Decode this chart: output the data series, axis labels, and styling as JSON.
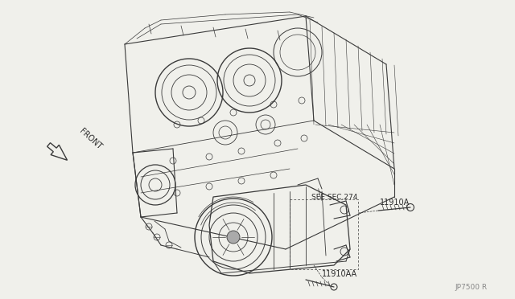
{
  "background_color": "#f0f0eb",
  "line_color": "#3a3a3a",
  "text_color": "#2a2a2a",
  "labels": {
    "front_arrow": "FRONT",
    "see_sec": "SEE SEC.274",
    "part1": "11910A",
    "part2": "11910AA",
    "ref": "JP7500 R"
  },
  "figsize": [
    6.4,
    3.72
  ],
  "dpi": 100
}
